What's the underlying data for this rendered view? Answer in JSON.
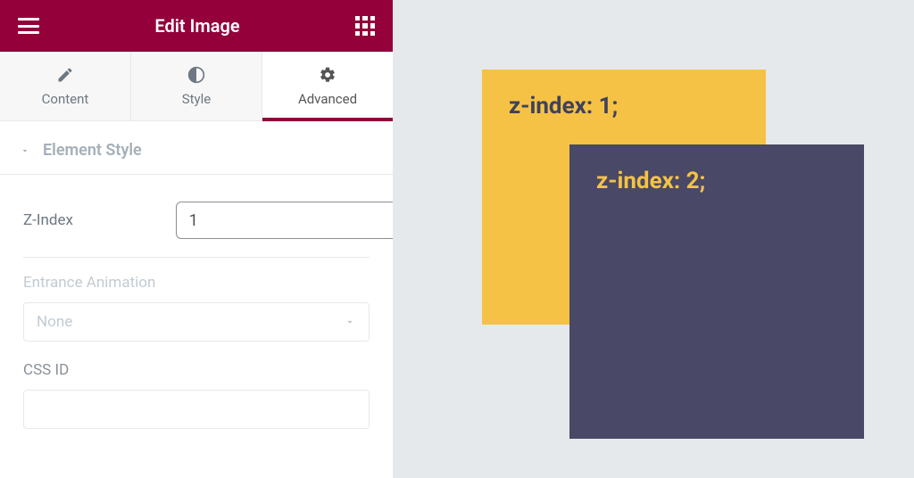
{
  "colors": {
    "brand": "#93003a",
    "brand_dark": "#7e0032",
    "tab_active_underline": "#93003a",
    "preview_bg": "#e6e9ec",
    "box_back_bg": "#f5c245",
    "box_back_text": "#3f425b",
    "box_front_bg": "#494866",
    "box_front_text": "#f5c245"
  },
  "header": {
    "title": "Edit Image"
  },
  "tabs": {
    "items": [
      {
        "label": "Content",
        "icon": "pencil-icon"
      },
      {
        "label": "Style",
        "icon": "contrast-icon"
      },
      {
        "label": "Advanced",
        "icon": "gear-icon"
      }
    ],
    "active_index": 2
  },
  "section": {
    "title": "Element Style",
    "expanded": true
  },
  "fields": {
    "z_index": {
      "label": "Z-Index",
      "value": "1"
    },
    "entrance_animation": {
      "label": "Entrance Animation",
      "selected": "None"
    },
    "css_id": {
      "label": "CSS ID",
      "value": ""
    }
  },
  "preview": {
    "back_text": "z-index: 1;",
    "front_text": "z-index: 2;"
  }
}
